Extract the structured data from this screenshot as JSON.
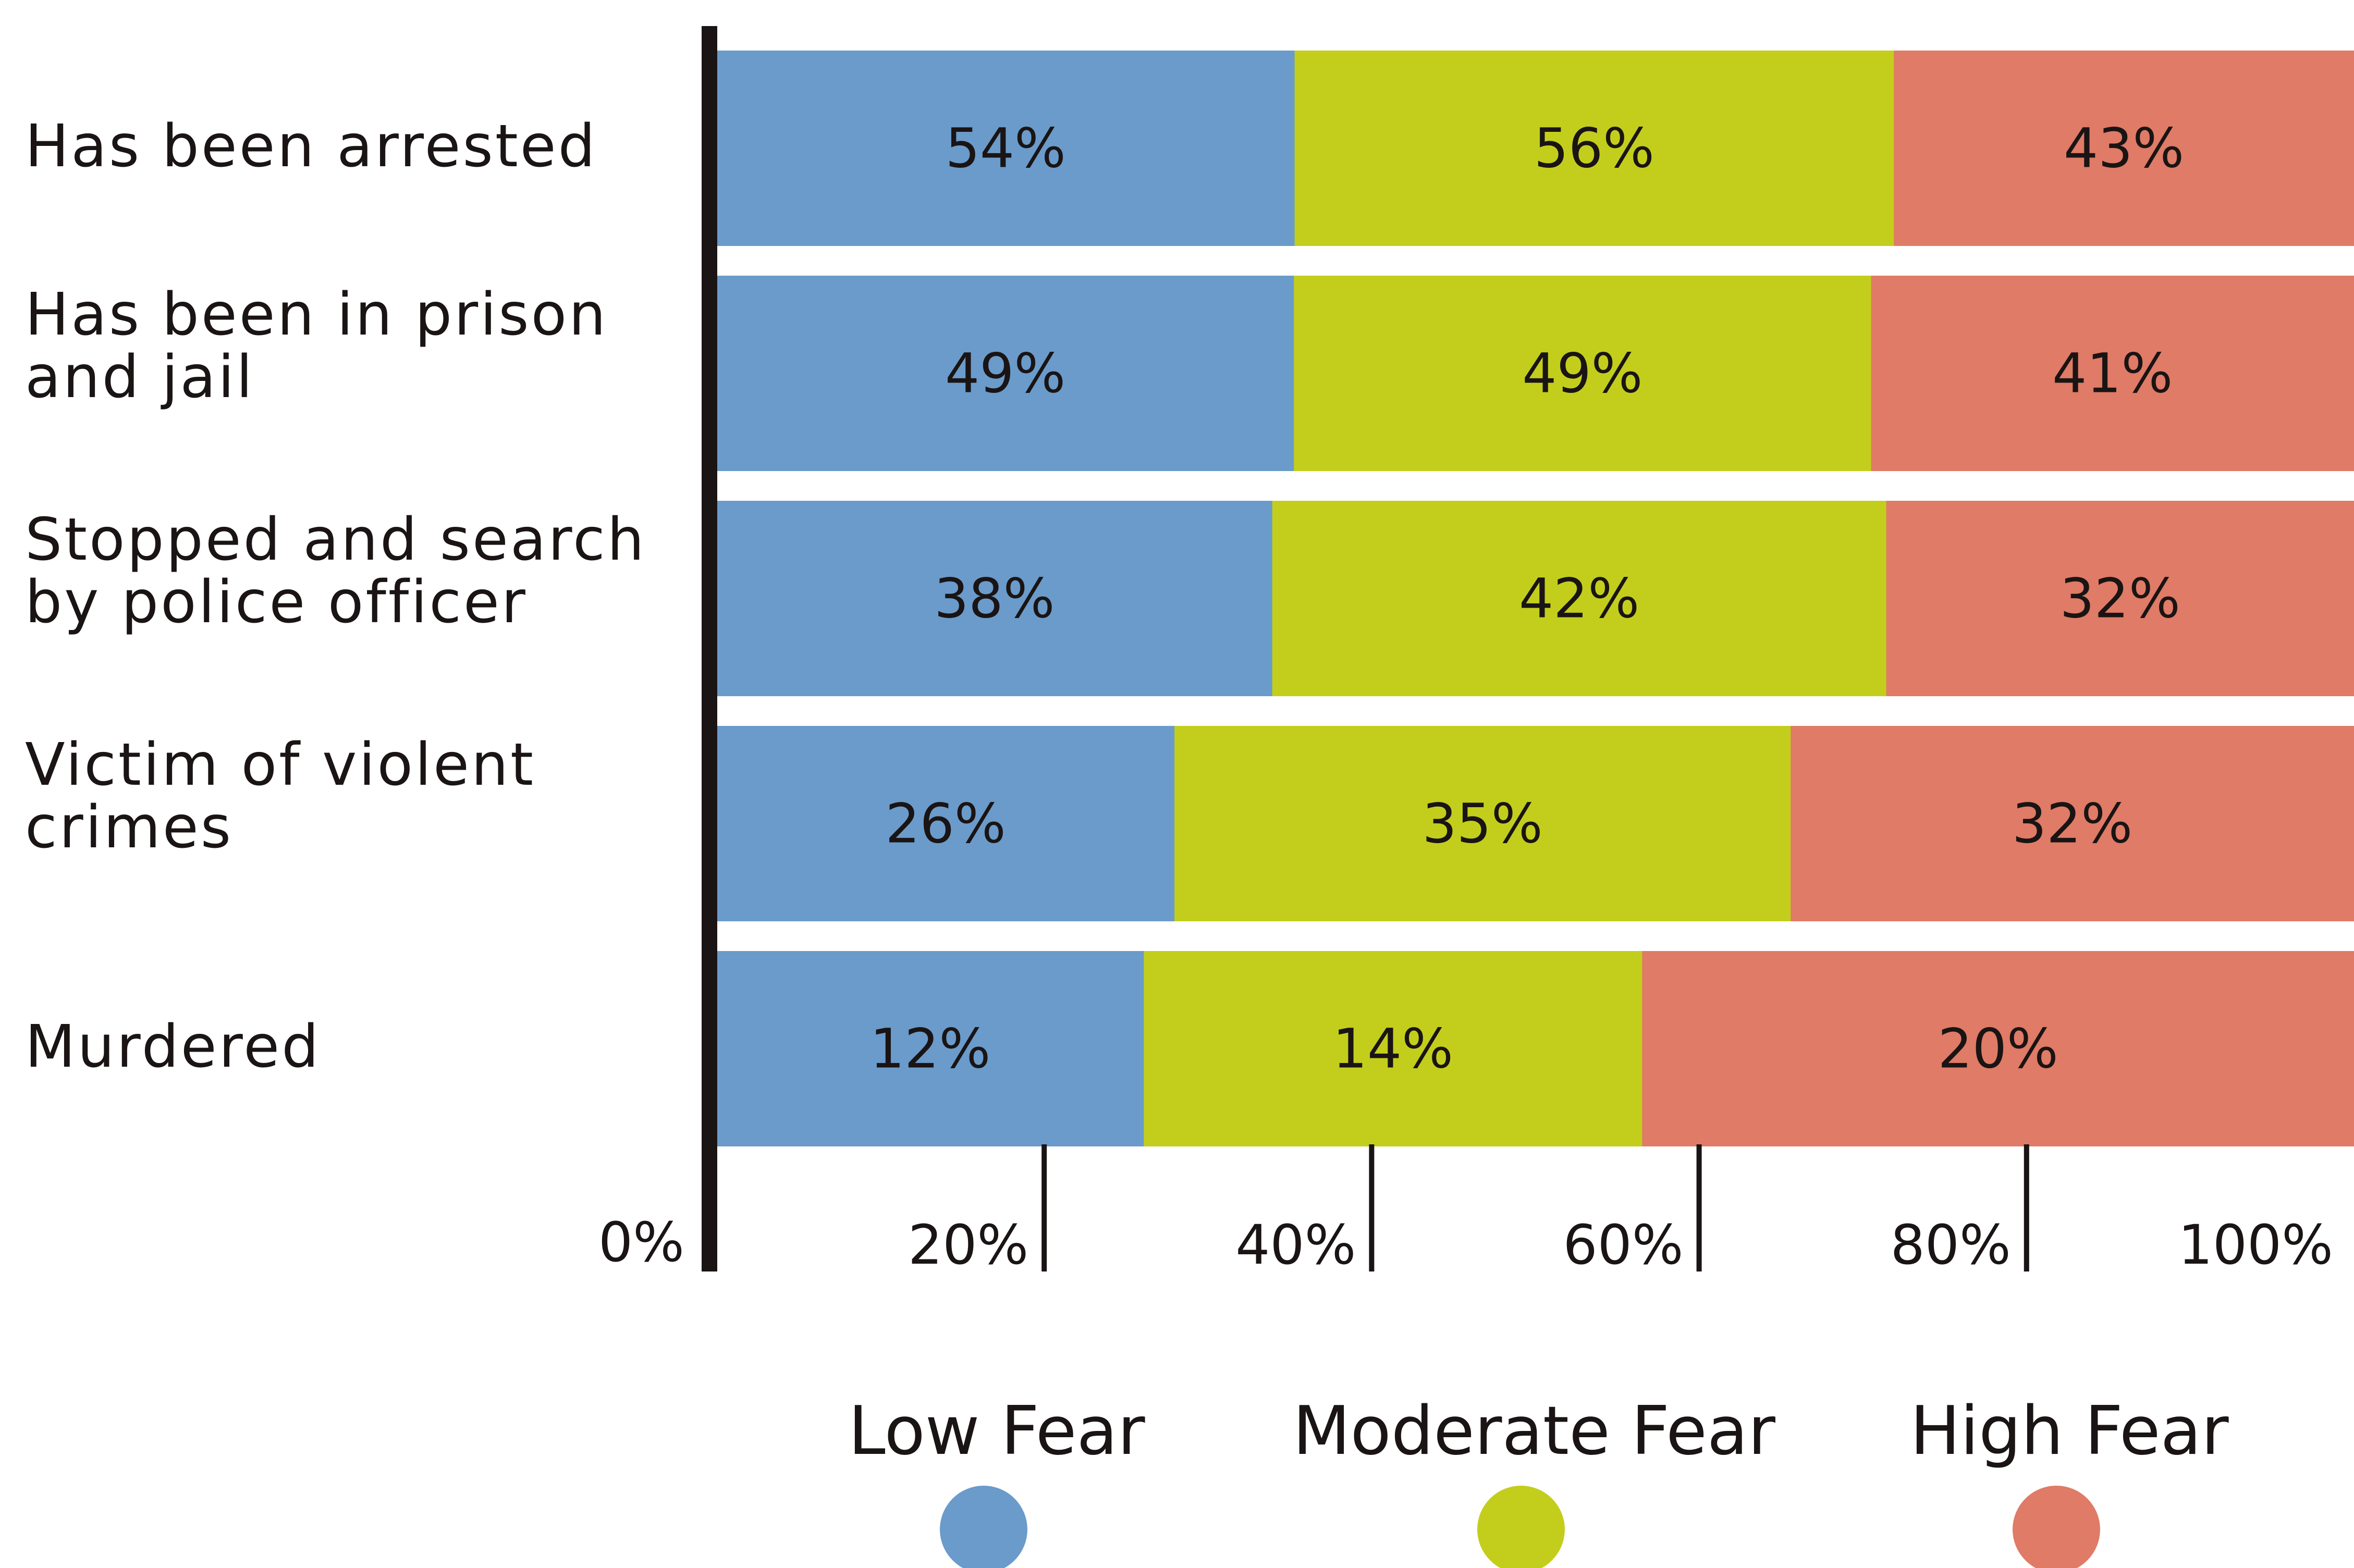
{
  "chart_data": {
    "type": "bar",
    "orientation": "horizontal",
    "stacked": true,
    "categories": [
      [
        "Has been arrested"
      ],
      [
        "Has been in prison",
        "and jail"
      ],
      [
        "Stopped and search",
        "by police officer"
      ],
      [
        "Victim of violent",
        "crimes"
      ],
      [
        "Murdered"
      ]
    ],
    "series": [
      {
        "name": "Low Fear",
        "color": "#6a9bca",
        "values": [
          54,
          49,
          38,
          26,
          12
        ]
      },
      {
        "name": "Moderate Fear",
        "color": "#c3ce1c",
        "values": [
          56,
          49,
          42,
          35,
          14
        ]
      },
      {
        "name": "High Fear",
        "color": "#df7b66",
        "values": [
          43,
          41,
          32,
          32,
          20
        ]
      }
    ],
    "xticks": [
      "0%",
      "20%",
      "40%",
      "60%",
      "80%",
      "100%"
    ],
    "legend_position": "bottom",
    "grid": false
  }
}
